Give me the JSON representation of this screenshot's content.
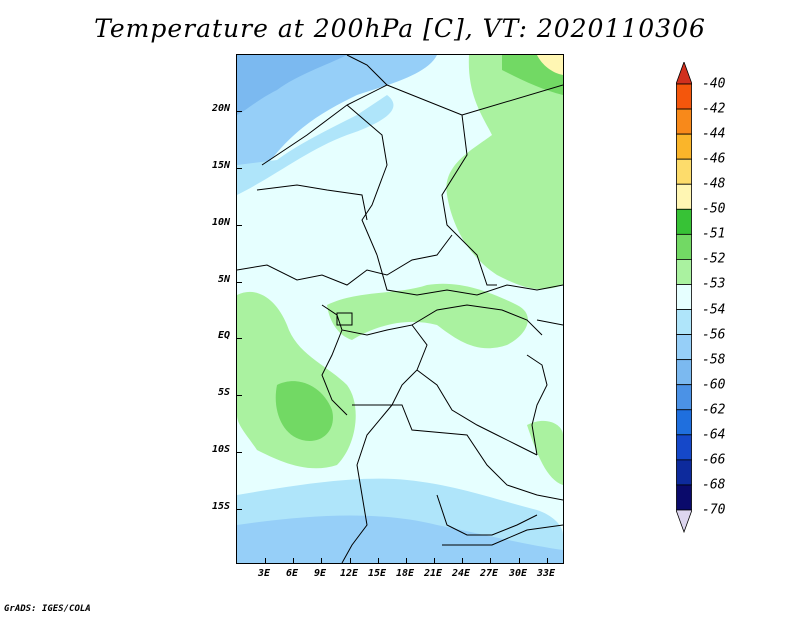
{
  "title": "Temperature at 200hPa [C], VT: 2020110306",
  "credit": "GrADS: IGES/COLA",
  "latitude_labels": [
    "20N",
    "15N",
    "10N",
    "5N",
    "EQ",
    "5S",
    "10S",
    "15S"
  ],
  "longitude_labels": [
    "3E",
    "6E",
    "9E",
    "12E",
    "15E",
    "18E",
    "21E",
    "24E",
    "27E",
    "30E",
    "33E"
  ],
  "colorbar": {
    "labels": [
      "-40",
      "-42",
      "-44",
      "-46",
      "-48",
      "-50",
      "-51",
      "-52",
      "-53",
      "-54",
      "-56",
      "-58",
      "-60",
      "-62",
      "-64",
      "-66",
      "-68",
      "-70"
    ],
    "colors": [
      "#e7160c",
      "#f4560c",
      "#f8891a",
      "#fab52a",
      "#fddc6b",
      "#fff6b3",
      "#37c236",
      "#72d964",
      "#aaf2a0",
      "#e6ffff",
      "#afe5fa",
      "#96cff8",
      "#7bb9f0",
      "#4b92e6",
      "#1f6fde",
      "#1548c9",
      "#0d2a9c",
      "#0a0a6b"
    ],
    "top_arrow_color": "#d1301e",
    "bottom_arrow_color": "#ddd6ef"
  },
  "map_colors": {
    "base": "#e6ffff",
    "light_green": "#aaf2a0",
    "mid_green": "#72d964",
    "dark_green": "#37c236",
    "light_blue": "#afe5fa",
    "mid_blue": "#96cff8",
    "blue": "#7bb9f0",
    "yellow": "#fff6b3"
  }
}
